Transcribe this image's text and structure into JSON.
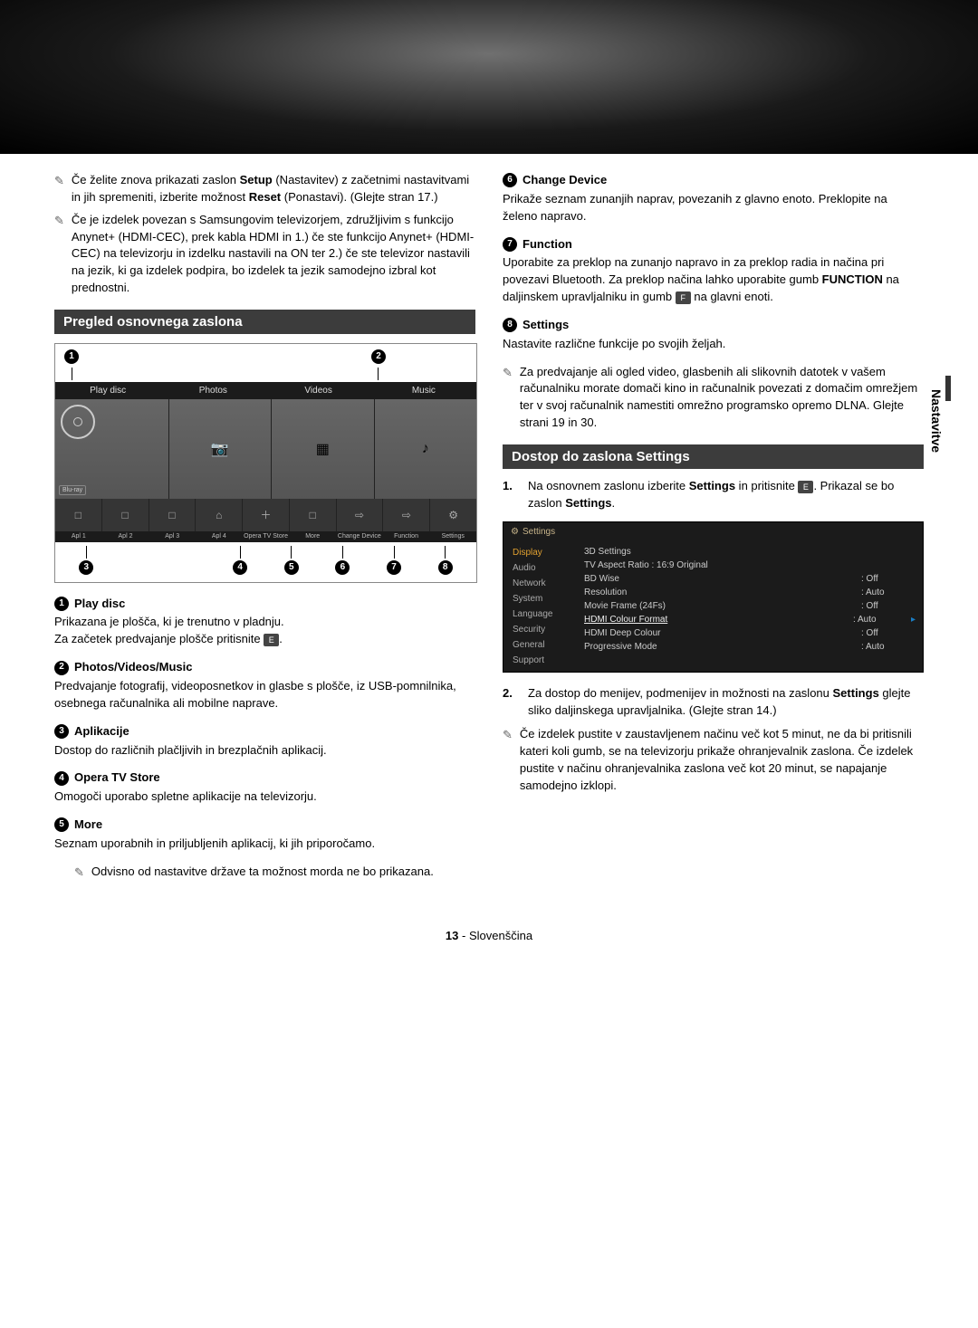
{
  "side_tab": "Nastavitve",
  "notes_top_left": [
    "Če želite znova prikazati zaslon <b>Setup</b> (Nastavitev) z začetnimi nastavitvami in jih spremeniti, izberite možnost <b>Reset</b> (Ponastavi). (Glejte stran 17.)",
    "Če je izdelek povezan s Samsungovim televizorjem, združljivim s funkcijo Anynet+ (HDMI-CEC), prek kabla HDMI in 1.) če ste funkcijo Anynet+ (HDMI-CEC) na televizorju in izdelku nastavili na ON ter 2.) če ste televizor nastavili na jezik, ki ga izdelek podpira, bo izdelek ta jezik samodejno izbral kot prednostni."
  ],
  "section1_title": "Pregled osnovnega zaslona",
  "dia_tabs": [
    "Play disc",
    "Photos",
    "Videos",
    "Music"
  ],
  "dia_bluray": "Blu-ray",
  "dia_labels": [
    "Apl 1",
    "Apl 2",
    "Apl 3",
    "Apl 4",
    "Opera TV\nStore",
    "More",
    "Change\nDevice",
    "Function",
    "Settings"
  ],
  "legend_left": [
    {
      "n": "1",
      "title": "Play disc",
      "body": "Prikazana je plošča, ki je trenutno v pladnju.\nZa začetek predvajanje plošče pritisnite [E]."
    },
    {
      "n": "2",
      "title": "Photos/Videos/Music",
      "body": "Predvajanje fotografij, videoposnetkov in glasbe s plošče, iz USB-pomnilnika, osebnega računalnika ali mobilne naprave."
    },
    {
      "n": "3",
      "title": "Aplikacije",
      "body": "Dostop do različnih plačljivih in brezplačnih aplikacij."
    },
    {
      "n": "4",
      "title": "Opera TV Store",
      "body": "Omogoči uporabo spletne aplikacije na televizorju."
    },
    {
      "n": "5",
      "title": "More",
      "body": "Seznam uporabnih in priljubljenih aplikacij, ki jih priporočamo."
    }
  ],
  "left_more_note": "Odvisno od nastavitve države ta možnost morda ne bo prikazana.",
  "legend_right": [
    {
      "n": "6",
      "title": "Change Device",
      "body": "Prikaže seznam zunanjih naprav, povezanih z glavno enoto. Preklopite na želeno napravo."
    },
    {
      "n": "7",
      "title": "Function",
      "body": "Uporabite za preklop na zunanjo napravo in za preklop radia in načina pri povezavi Bluetooth. Za preklop načina lahko uporabite gumb <b>FUNCTION</b> na daljinskem upravljalniku in gumb [F] na glavni enoti."
    },
    {
      "n": "8",
      "title": "Settings",
      "body": "Nastavite različne funkcije po svojih željah."
    }
  ],
  "right_dlna_note": "Za predvajanje ali ogled video, glasbenih ali slikovnih datotek v vašem računalniku morate domači kino in računalnik povezati z domačim omrežjem ter v svoj računalnik namestiti omrežno programsko opremo DLNA. Glejte strani 19 in 30.",
  "section2_title": "Dostop do zaslona Settings",
  "step1": "Na osnovnem zaslonu izberite <b>Settings</b> in pritisnite [E]. Prikazal se bo zaslon <b>Settings</b>.",
  "settings_header": "Settings",
  "settings_nav": [
    "Display",
    "Audio",
    "Network",
    "System",
    "Language",
    "Security",
    "General",
    "Support"
  ],
  "settings_rows": [
    {
      "k": "3D Settings",
      "v": ""
    },
    {
      "k": "TV Aspect Ratio : 16:9 Original",
      "v": ""
    },
    {
      "k": "BD Wise",
      "v": ": Off"
    },
    {
      "k": "Resolution",
      "v": ": Auto"
    },
    {
      "k": "Movie Frame (24Fs)",
      "v": ": Off"
    },
    {
      "k": "HDMI Colour Format",
      "v": ": Auto",
      "hi": true
    },
    {
      "k": "HDMI Deep Colour",
      "v": ": Off"
    },
    {
      "k": "Progressive Mode",
      "v": ": Auto"
    }
  ],
  "step2": "Za dostop do menijev, podmenijev in možnosti na zaslonu <b>Settings</b> glejte sliko daljinskega upravljalnika. (Glejte stran 14.)",
  "right_bottom_note": "Če izdelek pustite v zaustavljenem načinu več kot 5 minut, ne da bi pritisnili kateri koli gumb, se na televizorju prikaže ohranjevalnik zaslona. Če izdelek pustite v načinu ohranjevalnika zaslona več kot 20 minut, se napajanje samodejno izklopi.",
  "page_num": "13",
  "page_lang": "- Slovenščina"
}
